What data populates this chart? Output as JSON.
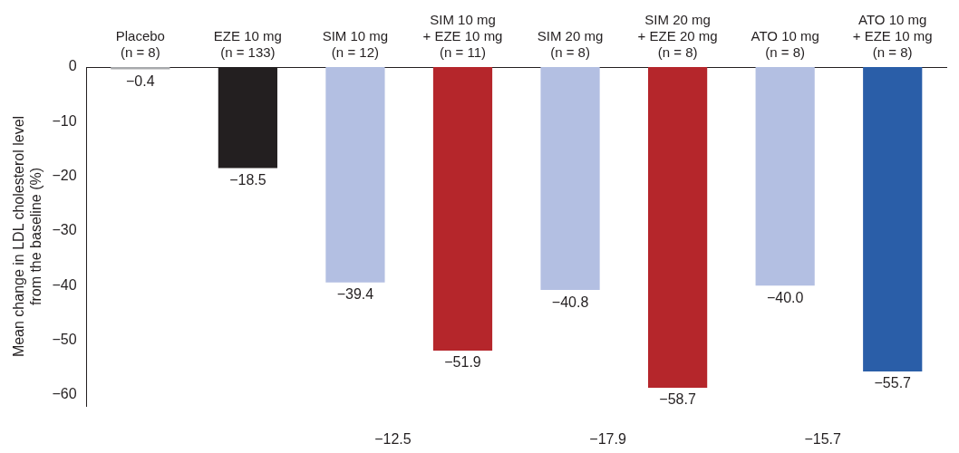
{
  "chart_data": {
    "type": "bar",
    "categories": [
      "Placebo\n(n = 8)",
      "EZE 10 mg\n(n = 133)",
      "SIM 10 mg\n(n = 12)",
      "SIM 10 mg\n+ EZE 10 mg\n(n = 11)",
      "SIM 20 mg\n(n = 8)",
      "SIM 20 mg\n+ EZE 20 mg\n(n = 8)",
      "ATO 10 mg\n(n = 8)",
      "ATO 10 mg\n+ EZE 10 mg\n(n = 8)"
    ],
    "values": [
      -0.4,
      -18.5,
      -39.4,
      -51.9,
      -40.8,
      -58.7,
      -40.0,
      -55.7
    ],
    "colors": [
      "#a7a9ac",
      "#231f20",
      "#b3bfe2",
      "#b5262b",
      "#b3bfe2",
      "#b5262b",
      "#b3bfe2",
      "#2a5ea8"
    ],
    "ylabel": "Mean change in LDL cholesterol level\nfrom the baseline (%)",
    "ylim": [
      -62,
      0
    ],
    "yticks": [
      {
        "value": 0,
        "label": "0"
      },
      {
        "value": -10,
        "label": "−10"
      },
      {
        "value": -20,
        "label": "−20"
      },
      {
        "value": -30,
        "label": "−30"
      },
      {
        "value": -40,
        "label": "−40"
      },
      {
        "value": -50,
        "label": "−50"
      },
      {
        "value": -60,
        "label": "−60"
      }
    ],
    "value_labels": [
      "−0.4",
      "−18.5",
      "−39.4",
      "−51.9",
      "−40.8",
      "−58.7",
      "−40.0",
      "−55.7"
    ],
    "grid": false,
    "legend": false,
    "annotations": [
      "−12.5",
      "−17.9",
      "−15.7"
    ]
  }
}
